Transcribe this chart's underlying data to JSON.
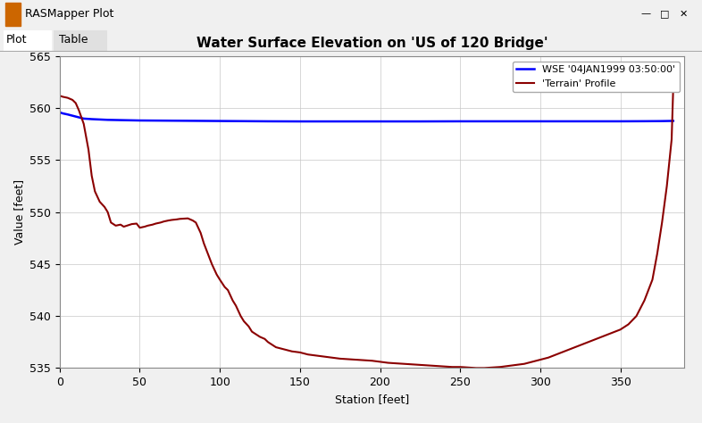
{
  "title": "Water Surface Elevation on 'US of 120 Bridge'",
  "xlabel": "Station [feet]",
  "ylabel": "Value [feet]",
  "xlim": [
    0,
    390
  ],
  "ylim": [
    535,
    565
  ],
  "yticks": [
    535,
    540,
    545,
    550,
    555,
    560,
    565
  ],
  "xticks": [
    0,
    50,
    100,
    150,
    200,
    250,
    300,
    350
  ],
  "wse_label": "WSE '04JAN1999 03:50:00'",
  "terrain_label": "'Terrain' Profile",
  "wse_color": "#0000FF",
  "terrain_color": "#8B0000",
  "window_bg_color": "#F0F0F0",
  "plot_bg_color": "#FFFFFF",
  "grid_color": "#C8C8C8",
  "title_fontsize": 11,
  "axis_fontsize": 9,
  "tick_fontsize": 9,
  "window_title": "RASMapper Plot",
  "tab1": "Plot",
  "tab2": "Table",
  "wse_x": [
    0,
    2,
    5,
    10,
    15,
    20,
    30,
    50,
    70,
    90,
    110,
    130,
    150,
    175,
    200,
    225,
    250,
    275,
    300,
    325,
    350,
    365,
    375,
    383
  ],
  "wse_y": [
    559.6,
    559.5,
    559.4,
    559.2,
    559.0,
    558.95,
    558.88,
    558.82,
    558.8,
    558.78,
    558.76,
    558.74,
    558.73,
    558.73,
    558.73,
    558.73,
    558.74,
    558.74,
    558.74,
    558.74,
    558.74,
    558.75,
    558.76,
    558.78
  ],
  "terrain_x": [
    0,
    2,
    5,
    8,
    10,
    12,
    15,
    18,
    20,
    22,
    25,
    28,
    30,
    32,
    35,
    38,
    40,
    42,
    45,
    48,
    50,
    53,
    55,
    58,
    60,
    63,
    65,
    68,
    70,
    73,
    75,
    78,
    80,
    83,
    85,
    88,
    90,
    93,
    95,
    98,
    100,
    103,
    105,
    108,
    110,
    113,
    115,
    118,
    120,
    123,
    125,
    128,
    130,
    135,
    140,
    145,
    150,
    155,
    160,
    165,
    170,
    175,
    180,
    185,
    190,
    195,
    200,
    205,
    210,
    215,
    220,
    225,
    230,
    235,
    240,
    245,
    250,
    255,
    260,
    265,
    270,
    275,
    280,
    285,
    290,
    295,
    300,
    305,
    310,
    315,
    320,
    325,
    330,
    335,
    340,
    345,
    350,
    355,
    360,
    365,
    370,
    373,
    376,
    379,
    382,
    383
  ],
  "terrain_y": [
    561.2,
    561.1,
    561.0,
    560.8,
    560.5,
    559.8,
    558.5,
    556.0,
    553.5,
    552.0,
    551.0,
    550.5,
    550.0,
    549.0,
    548.7,
    548.8,
    548.6,
    548.7,
    548.85,
    548.9,
    548.5,
    548.6,
    548.7,
    548.8,
    548.9,
    549.0,
    549.1,
    549.2,
    549.25,
    549.3,
    549.35,
    549.38,
    549.4,
    549.2,
    549.0,
    548.0,
    547.0,
    545.8,
    545.0,
    544.0,
    543.5,
    542.8,
    542.5,
    541.5,
    541.0,
    540.0,
    539.5,
    539.0,
    538.5,
    538.2,
    538.0,
    537.8,
    537.5,
    537.0,
    536.8,
    536.6,
    536.5,
    536.3,
    536.2,
    536.1,
    536.0,
    535.9,
    535.85,
    535.8,
    535.75,
    535.7,
    535.6,
    535.5,
    535.45,
    535.4,
    535.35,
    535.3,
    535.25,
    535.2,
    535.15,
    535.1,
    535.1,
    535.05,
    535.0,
    535.0,
    535.05,
    535.1,
    535.2,
    535.3,
    535.4,
    535.6,
    535.8,
    536.0,
    536.3,
    536.6,
    536.9,
    537.2,
    537.5,
    537.8,
    538.1,
    538.4,
    538.7,
    539.2,
    540.0,
    541.5,
    543.5,
    546.0,
    549.0,
    552.5,
    557.0,
    562.0
  ]
}
